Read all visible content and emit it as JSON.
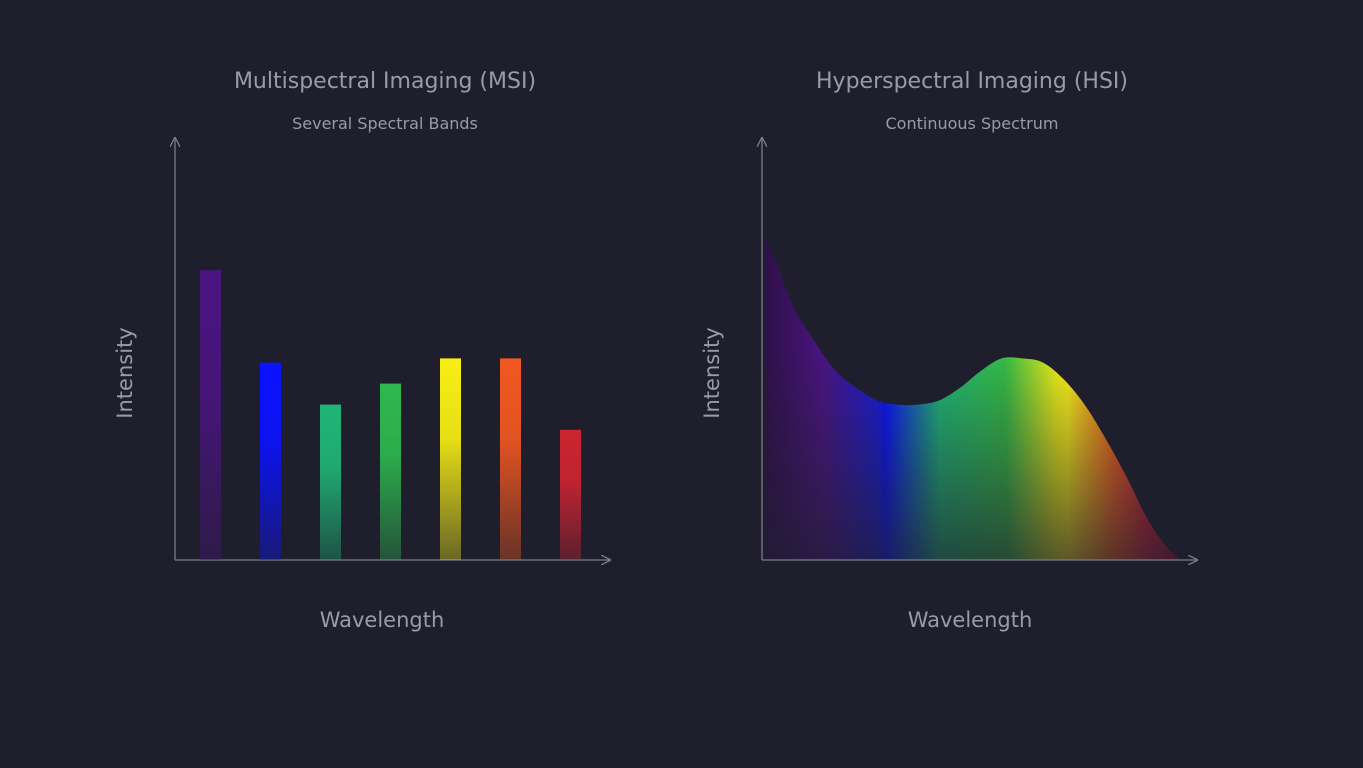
{
  "colors": {
    "background": "#1f1e2d",
    "text": "#9b9aa8",
    "axis": "#7d7c8c"
  },
  "chart_data": [
    {
      "type": "bar",
      "title": "Multispectral Imaging (MSI)",
      "subtitle": "Several Spectral Bands",
      "xlabel": "Wavelength",
      "ylabel": "Intensity",
      "ylim": [
        0,
        100
      ],
      "grid": false,
      "categories": [
        "violet",
        "blue",
        "cyan-green",
        "green",
        "yellow",
        "orange",
        "red"
      ],
      "values": [
        69,
        47,
        37,
        42,
        48,
        48,
        31
      ],
      "bar_colors": [
        "#4a1480",
        "#0a12ff",
        "#1fb577",
        "#2eb84f",
        "#f8ef14",
        "#f25820",
        "#cc2430"
      ]
    },
    {
      "type": "area",
      "title": "Hyperspectral Imaging (HSI)",
      "subtitle": "Continuous Spectrum",
      "xlabel": "Wavelength",
      "ylabel": "Intensity",
      "ylim": [
        0,
        100
      ],
      "grid": false,
      "x": [
        0,
        3,
        7,
        12,
        17,
        22,
        27,
        32,
        37,
        42,
        47,
        52,
        57,
        62,
        67,
        72,
        77,
        82,
        87,
        92,
        96,
        100
      ],
      "y": [
        77,
        70,
        60,
        52,
        45,
        41,
        38,
        37,
        37,
        38,
        41,
        45,
        48,
        48,
        47,
        43,
        37,
        29,
        20,
        10,
        4,
        0
      ],
      "gradient_stops": [
        {
          "offset": 0.0,
          "color": "#2e1048"
        },
        {
          "offset": 0.14,
          "color": "#4a1480"
        },
        {
          "offset": 0.27,
          "color": "#1a1cd0"
        },
        {
          "offset": 0.29,
          "color": "#0a12ff"
        },
        {
          "offset": 0.42,
          "color": "#20b877"
        },
        {
          "offset": 0.58,
          "color": "#36bd45"
        },
        {
          "offset": 0.7,
          "color": "#e9ec18"
        },
        {
          "offset": 0.73,
          "color": "#fbf018"
        },
        {
          "offset": 0.84,
          "color": "#f2641e"
        },
        {
          "offset": 0.92,
          "color": "#cc2236"
        },
        {
          "offset": 1.0,
          "color": "#8a1430"
        }
      ]
    }
  ]
}
